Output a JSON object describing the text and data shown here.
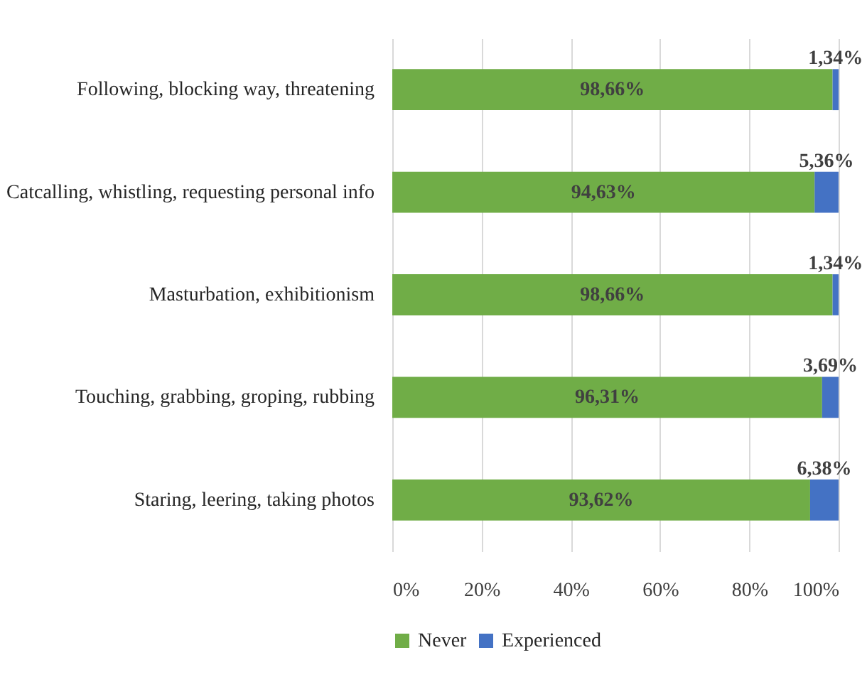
{
  "chart_data": {
    "type": "bar",
    "orientation": "horizontal",
    "stacked": true,
    "categories": [
      "Following, blocking way, threatening",
      "Catcalling, whistling, requesting personal info",
      "Masturbation, exhibitionism",
      "Touching, grabbing, groping, rubbing",
      "Staring, leering, taking photos"
    ],
    "series": [
      {
        "name": "Never",
        "color": "#70ad47",
        "values": [
          98.66,
          94.63,
          98.66,
          96.31,
          93.62
        ],
        "value_labels": [
          "98,66%",
          "94,63%",
          "98,66%",
          "96,31%",
          "93,62%"
        ]
      },
      {
        "name": "Experienced",
        "color": "#4472c4",
        "values": [
          1.34,
          5.36,
          1.34,
          3.69,
          6.38
        ],
        "value_labels": [
          "1,34%",
          "5,36%",
          "1,34%",
          "3,69%",
          "6,38%"
        ]
      }
    ],
    "xlim": [
      0,
      100
    ],
    "xticks": [
      {
        "value": 0,
        "label": "0%"
      },
      {
        "value": 20,
        "label": "20%"
      },
      {
        "value": 40,
        "label": "40%"
      },
      {
        "value": 60,
        "label": "60%"
      },
      {
        "value": 80,
        "label": "80%"
      },
      {
        "value": 100,
        "label": "100%"
      }
    ],
    "grid": "x",
    "legend": "bottom"
  }
}
